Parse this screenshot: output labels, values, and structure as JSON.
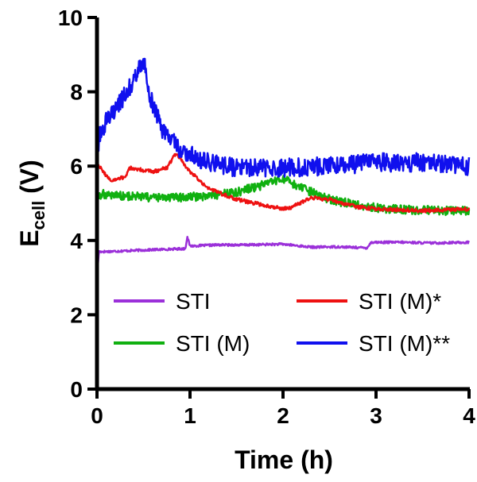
{
  "chart_data": {
    "type": "line",
    "title": "",
    "xlabel": "Time (h)",
    "ylabel": {
      "main": "E",
      "sub": "cell",
      "unit": " (V)"
    },
    "xlim": [
      0,
      4
    ],
    "ylim": [
      0,
      10
    ],
    "xticks": [
      0,
      1,
      2,
      3,
      4
    ],
    "yticks": [
      0,
      2,
      4,
      6,
      8,
      10
    ],
    "grid": false,
    "legend_position": "inside-bottom",
    "series": [
      {
        "name": "STI",
        "color": "#9b30d9",
        "x": [
          0,
          0.02,
          0.1,
          0.3,
          0.6,
          0.95,
          0.97,
          1.0,
          1.3,
          1.6,
          2.0,
          2.3,
          2.6,
          2.9,
          2.95,
          3.0,
          3.3,
          3.6,
          4.0
        ],
        "y": [
          3.0,
          3.7,
          3.7,
          3.72,
          3.75,
          3.78,
          4.1,
          3.85,
          3.88,
          3.88,
          3.9,
          3.82,
          3.83,
          3.8,
          3.95,
          3.95,
          3.95,
          3.93,
          3.95
        ],
        "noise": 0.03
      },
      {
        "name": "STI (M)",
        "color": "#10b010",
        "x": [
          0,
          0.05,
          0.3,
          0.6,
          0.9,
          1.2,
          1.5,
          1.8,
          2.0,
          2.2,
          2.5,
          2.8,
          3.1,
          3.4,
          3.7,
          4.0
        ],
        "y": [
          5.1,
          5.25,
          5.2,
          5.15,
          5.15,
          5.2,
          5.3,
          5.5,
          5.65,
          5.4,
          5.1,
          4.95,
          4.85,
          4.82,
          4.8,
          4.8
        ],
        "noise": 0.12
      },
      {
        "name": "STI (M)*",
        "color": "#ee1111",
        "x": [
          0,
          0.05,
          0.15,
          0.3,
          0.35,
          0.6,
          0.75,
          0.85,
          0.95,
          1.0,
          1.2,
          1.5,
          1.8,
          2.0,
          2.1,
          2.3,
          2.5,
          2.8,
          3.0,
          3.5,
          4.0
        ],
        "y": [
          6.1,
          5.9,
          5.6,
          5.7,
          5.95,
          5.85,
          5.95,
          6.35,
          6.0,
          5.85,
          5.4,
          5.1,
          4.95,
          4.85,
          4.9,
          5.15,
          5.1,
          4.9,
          4.85,
          4.8,
          4.85
        ],
        "noise": 0.05
      },
      {
        "name": "STI (M)**",
        "color": "#1010ee",
        "x": [
          0,
          0.02,
          0.1,
          0.3,
          0.45,
          0.5,
          0.55,
          0.7,
          0.9,
          1.2,
          1.5,
          2.0,
          2.5,
          3.0,
          3.5,
          4.0
        ],
        "y": [
          5.6,
          6.8,
          7.2,
          7.9,
          8.6,
          8.9,
          8.0,
          7.0,
          6.4,
          6.1,
          5.95,
          5.95,
          6.0,
          6.1,
          6.1,
          6.0
        ],
        "noise": 0.25
      }
    ]
  }
}
